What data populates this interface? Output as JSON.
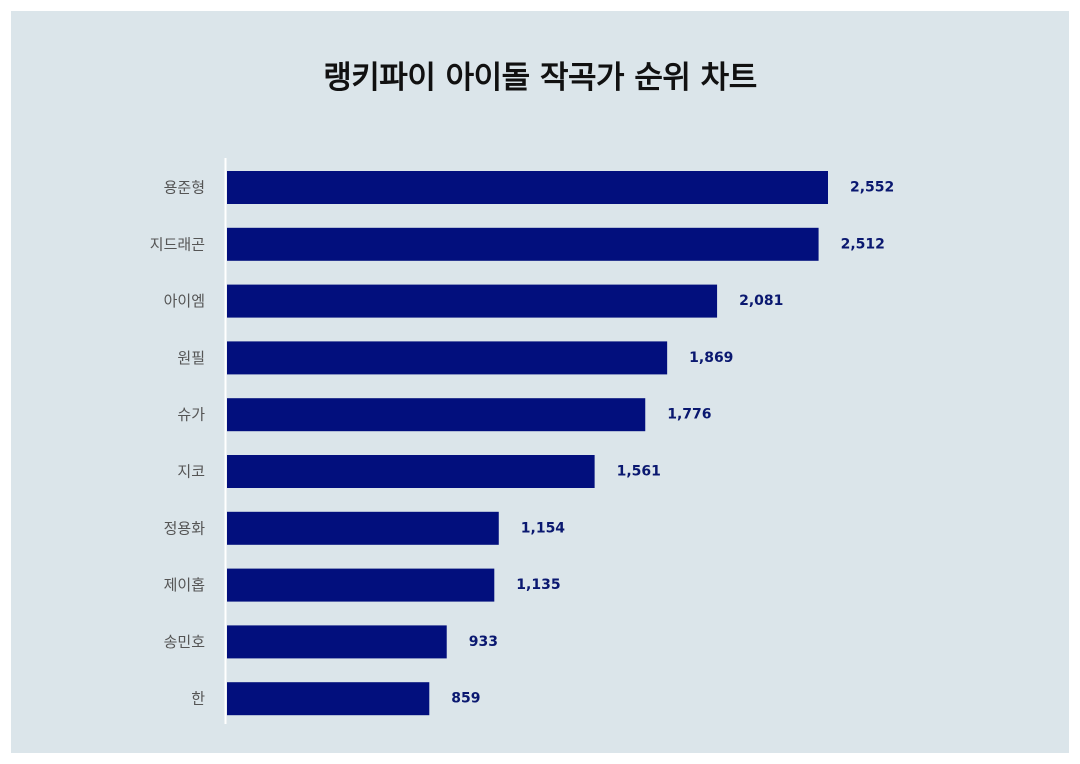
{
  "chart_data": {
    "type": "bar",
    "orientation": "horizontal",
    "title": "랭키파이 아이돌 작곡가 순위 차트",
    "categories": [
      "용준형",
      "지드래곤",
      "아이엠",
      "원필",
      "슈가",
      "지코",
      "정용화",
      "제이홉",
      "송민호",
      "한"
    ],
    "values": [
      2552,
      2512,
      2081,
      1869,
      1776,
      1561,
      1154,
      1135,
      933,
      859
    ],
    "value_labels": [
      "2,552",
      "2,512",
      "2,081",
      "1,869",
      "1,776",
      "1,561",
      "1,154",
      "1,135",
      "933",
      "859"
    ],
    "xlim": [
      0,
      3000
    ],
    "grid": false,
    "legend": "none",
    "colors": {
      "bar": "#020f7d",
      "background": "#dbe5ea",
      "value_text": "#0a1870",
      "category_text": "#555555"
    }
  }
}
